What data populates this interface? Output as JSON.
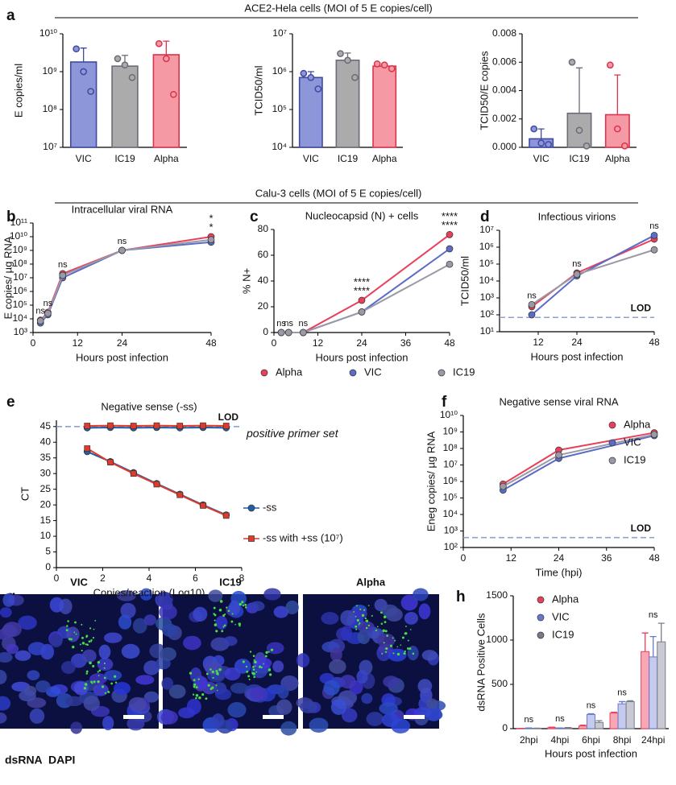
{
  "figure": {
    "headers": [
      "ACE2-Hela cells (MOI of 5 E copies/cell)",
      "Calu-3 cells (MOI of 5 E copies/cell)"
    ],
    "panel_labels": [
      "a",
      "b",
      "c",
      "d",
      "e",
      "f",
      "g",
      "h"
    ]
  },
  "images": {
    "titles": [
      "VIC",
      "IC19",
      "Alpha"
    ],
    "channels": [
      {
        "name": "dsRNA",
        "color": "#3cc83c"
      },
      {
        "name": "DAPI",
        "color": "#3a4fc4"
      }
    ]
  },
  "chart_data": [
    {
      "type": "bar",
      "ylabel": "E copies/ml",
      "categories": [
        "VIC",
        "IC19",
        "Alpha"
      ],
      "values": [
        1800000000,
        1400000000,
        2800000000
      ],
      "errors": [
        2400000000,
        1300000000,
        3600000000
      ],
      "points": [
        [
          4000000000,
          1000000000,
          300000000
        ],
        [
          2200000000,
          1500000000,
          700000000
        ],
        [
          5500000000,
          2200000000,
          250000000
        ]
      ],
      "colors": [
        "#8d96d8",
        "#ababab",
        "#f59aa5"
      ],
      "edge_colors": [
        "#3f4aa0",
        "#6b6b78",
        "#d9344c"
      ],
      "ylog": true,
      "ylim": [
        10000000,
        10000000000
      ],
      "yticks": [
        {
          "value": 10000000,
          "label": "10⁷"
        },
        {
          "value": 100000000,
          "label": "10⁸"
        },
        {
          "value": 1000000000,
          "label": "10⁹"
        },
        {
          "value": 10000000000,
          "label": "10¹⁰"
        }
      ]
    },
    {
      "type": "bar",
      "ylabel": "TCID50/ml",
      "categories": [
        "VIC",
        "IC19",
        "Alpha"
      ],
      "values": [
        700000,
        2000000,
        1400000
      ],
      "errors": [
        300000,
        1100000,
        200000
      ],
      "points": [
        [
          900000,
          700000,
          350000
        ],
        [
          3000000,
          2000000,
          700000
        ],
        [
          1600000,
          1500000,
          1200000
        ]
      ],
      "colors": [
        "#8d96d8",
        "#ababab",
        "#f59aa5"
      ],
      "edge_colors": [
        "#3f4aa0",
        "#6b6b78",
        "#d9344c"
      ],
      "ylog": true,
      "ylim": [
        10000,
        10000000
      ],
      "yticks": [
        {
          "value": 10000,
          "label": "10⁴"
        },
        {
          "value": 100000,
          "label": "10⁵"
        },
        {
          "value": 1000000,
          "label": "10⁶"
        },
        {
          "value": 10000000,
          "label": "10⁷"
        }
      ]
    },
    {
      "type": "bar",
      "ylabel": "TCID50/E copies",
      "categories": [
        "VIC",
        "IC19",
        "Alpha"
      ],
      "values": [
        0.0006,
        0.0024,
        0.0023
      ],
      "errors": [
        0.0007,
        0.0032,
        0.0028
      ],
      "points": [
        [
          0.0013,
          0.0003,
          0.0002
        ],
        [
          0.006,
          0.0012,
          0.0001
        ],
        [
          0.0058,
          0.0013,
          0.0001
        ]
      ],
      "colors": [
        "#8d96d8",
        "#ababab",
        "#f59aa5"
      ],
      "edge_colors": [
        "#3f4aa0",
        "#6b6b78",
        "#d9344c"
      ],
      "ylog": false,
      "ylim": [
        0,
        0.008
      ],
      "yticks": [
        {
          "value": 0,
          "label": "0.000"
        },
        {
          "value": 0.002,
          "label": "0.002"
        },
        {
          "value": 0.004,
          "label": "0.004"
        },
        {
          "value": 0.006,
          "label": "0.006"
        },
        {
          "value": 0.008,
          "label": "0.008"
        }
      ]
    },
    {
      "type": "line",
      "title": "Intracellular viral RNA",
      "xlabel": "Hours post infection",
      "ylabel": "E copies/ µg RNA",
      "x": [
        2,
        4,
        8,
        24,
        48
      ],
      "xlim": [
        0,
        48
      ],
      "xticks": [
        0,
        12,
        24,
        48
      ],
      "ylog": true,
      "ylim": [
        1000,
        100000000000
      ],
      "yticks": [
        {
          "value": 1000,
          "label": "10³"
        },
        {
          "value": 10000,
          "label": "10⁴"
        },
        {
          "value": 100000,
          "label": "10⁵"
        },
        {
          "value": 1000000,
          "label": "10⁶"
        },
        {
          "value": 10000000,
          "label": "10⁷"
        },
        {
          "value": 100000000,
          "label": "10⁸"
        },
        {
          "value": 1000000000,
          "label": "10⁹"
        },
        {
          "value": 10000000000,
          "label": "10¹⁰"
        },
        {
          "value": 100000000000,
          "label": "10¹¹"
        }
      ],
      "series": [
        {
          "name": "Alpha",
          "color": "#e8405a",
          "values": [
            8000,
            30000,
            20000000,
            1000000000,
            10000000000
          ]
        },
        {
          "name": "VIC",
          "color": "#5b6bc8",
          "values": [
            5000,
            20000,
            10000000,
            1000000000,
            4000000000
          ]
        },
        {
          "name": "IC19",
          "color": "#9a9aa6",
          "values": [
            7000,
            25000,
            15000000,
            1000000000,
            6000000000
          ]
        }
      ],
      "annotations": [
        [
          {
            "text": "ns"
          }
        ],
        [
          {
            "text": "ns"
          }
        ],
        [
          {
            "text": "ns"
          }
        ],
        [
          {
            "text": "ns"
          }
        ],
        [
          {
            "text": "*",
            "color": "#55556a"
          },
          {
            "text": "*",
            "color": "#5b6bc8"
          }
        ]
      ]
    },
    {
      "type": "line",
      "title": "Nucleocapsid (N) + cells",
      "xlabel": "Hours post infection",
      "ylabel": "% N+",
      "x": [
        2,
        4,
        8,
        24,
        48
      ],
      "xlim": [
        0,
        48
      ],
      "xticks": [
        0,
        12,
        24,
        36,
        48
      ],
      "ylog": false,
      "ylim": [
        0,
        80
      ],
      "yticks": [
        0,
        20,
        40,
        60,
        80
      ],
      "legend": "bottom",
      "series": [
        {
          "name": "Alpha",
          "color": "#e8405a",
          "values": [
            0,
            0,
            0,
            25,
            76
          ]
        },
        {
          "name": "VIC",
          "color": "#5b6bc8",
          "values": [
            0,
            0,
            0,
            16,
            65
          ]
        },
        {
          "name": "IC19",
          "color": "#9a9aa6",
          "values": [
            0,
            0,
            0,
            16,
            53
          ]
        }
      ],
      "annotations": [
        [
          {
            "text": "ns"
          }
        ],
        [
          {
            "text": "ns"
          }
        ],
        [
          {
            "text": "ns"
          }
        ],
        [
          {
            "text": "****",
            "color": "#55556a"
          },
          {
            "text": "****",
            "color": "#5b6bc8"
          }
        ],
        [
          {
            "text": "****",
            "color": "#55556a"
          },
          {
            "text": "****",
            "color": "#5b6bc8"
          }
        ]
      ]
    },
    {
      "type": "line",
      "title": "Infectious virions",
      "xlabel": "Hours post infection",
      "ylabel": "TCID50/ml",
      "x": [
        10,
        24,
        48
      ],
      "xlim": [
        0,
        48
      ],
      "xticks": [
        12,
        24,
        48
      ],
      "ylog": true,
      "ylim": [
        10,
        10000000
      ],
      "yticks": [
        {
          "value": 10,
          "label": "10¹"
        },
        {
          "value": 100,
          "label": "10²"
        },
        {
          "value": 1000,
          "label": "10³"
        },
        {
          "value": 10000,
          "label": "10⁴"
        },
        {
          "value": 100000,
          "label": "10⁵"
        },
        {
          "value": 1000000,
          "label": "10⁶"
        },
        {
          "value": 10000000,
          "label": "10⁷"
        }
      ],
      "lod": {
        "value": 70,
        "label": "LOD"
      },
      "series": [
        {
          "name": "Alpha",
          "color": "#e8405a",
          "values": [
            300,
            30000,
            3000000
          ]
        },
        {
          "name": "VIC",
          "color": "#5b6bc8",
          "values": [
            100,
            20000,
            5000000
          ]
        },
        {
          "name": "IC19",
          "color": "#9a9aa6",
          "values": [
            400,
            25000,
            700000
          ]
        }
      ],
      "annotations": [
        [
          {
            "text": "ns"
          }
        ],
        [
          {
            "text": "ns"
          }
        ],
        [
          {
            "text": "ns"
          }
        ]
      ]
    },
    {
      "type": "line",
      "title": "Negative sense (-ss)",
      "xlabel": "Copies/reaction (Log10)",
      "ylabel": "CT",
      "x": [
        1.33,
        2.33,
        3.33,
        4.33,
        5.33,
        6.33,
        7.33
      ],
      "xlim": [
        0,
        8
      ],
      "xticks": [
        0,
        2,
        4,
        6,
        8
      ],
      "ylog": false,
      "ylim": [
        0,
        47
      ],
      "yticks": [
        0,
        5,
        10,
        15,
        20,
        25,
        30,
        35,
        40,
        45
      ],
      "legend": "right",
      "lod": {
        "value": 45,
        "label": "LOD"
      },
      "series": [
        {
          "name": "-ss",
          "color": "#1f5fa8",
          "marker": "circle",
          "values": [
            37,
            33.8,
            30.3,
            26.8,
            23.4,
            20,
            16.8
          ]
        },
        {
          "name": "-ss with +ss (10⁷)",
          "color": "#e03a2b",
          "marker": "square",
          "values": [
            38,
            33.6,
            30,
            26.6,
            23.2,
            19.8,
            16.6
          ]
        }
      ],
      "upper_label": "positive primer set",
      "upper_series": [
        {
          "color": "#1f5fa8",
          "marker": "circle",
          "values": [
            44.6,
            44.7,
            44.6,
            44.7,
            44.6,
            44.7,
            44.6
          ]
        },
        {
          "color": "#e03a2b",
          "marker": "square",
          "values": [
            45.2,
            45.3,
            45.2,
            45.3,
            45.2,
            45.3,
            45.2
          ]
        }
      ]
    },
    {
      "type": "line",
      "title": "Negative sense viral RNA",
      "xlabel": "Time (hpi)",
      "ylabel": "Eneg copies/ µg RNA",
      "x": [
        10,
        24,
        48
      ],
      "xlim": [
        0,
        48
      ],
      "xticks": [
        0,
        12,
        24,
        36,
        48
      ],
      "ylog": true,
      "ylim": [
        100,
        10000000000
      ],
      "yticks": [
        {
          "value": 100,
          "label": "10²"
        },
        {
          "value": 1000,
          "label": "10³"
        },
        {
          "value": 10000,
          "label": "10⁴"
        },
        {
          "value": 100000,
          "label": "10⁵"
        },
        {
          "value": 1000000,
          "label": "10⁶"
        },
        {
          "value": 10000000,
          "label": "10⁷"
        },
        {
          "value": 100000000,
          "label": "10⁸"
        },
        {
          "value": 1000000000,
          "label": "10⁹"
        },
        {
          "value": 10000000000,
          "label": "10¹⁰"
        }
      ],
      "lod": {
        "value": 400,
        "label": "LOD"
      },
      "legend": "upper-right",
      "series": [
        {
          "name": "Alpha",
          "color": "#e8405a",
          "values": [
            700000,
            80000000,
            900000000
          ]
        },
        {
          "name": "VIC",
          "color": "#5b6bc8",
          "values": [
            300000,
            25000000,
            600000000
          ]
        },
        {
          "name": "IC19",
          "color": "#9a9aa6",
          "values": [
            500000,
            40000000,
            700000000
          ]
        }
      ]
    },
    {
      "type": "bar",
      "xlabel": "Hours post infection",
      "ylabel": "dsRNA Positive Cells",
      "categories": [
        "2hpi",
        "4hpi",
        "6hpi",
        "8hpi",
        "24hpi"
      ],
      "ylog": false,
      "ylim": [
        0,
        1500
      ],
      "yticks": [
        0,
        500,
        1000,
        1500
      ],
      "legend": "upper-left",
      "series": [
        {
          "name": "Alpha",
          "color": "#e8405a",
          "fill": "#f7a8b4",
          "values": [
            2,
            12,
            30,
            175,
            870
          ],
          "errors": [
            1,
            5,
            10,
            10,
            210
          ]
        },
        {
          "name": "VIC",
          "color": "#6a78cc",
          "fill": "#c5cbef",
          "values": [
            5,
            5,
            160,
            280,
            810
          ],
          "errors": [
            3,
            3,
            8,
            25,
            230
          ]
        },
        {
          "name": "IC19",
          "color": "#7a7a8a",
          "fill": "#c9c9d3",
          "values": [
            3,
            8,
            70,
            305,
            980
          ],
          "errors": [
            2,
            4,
            20,
            10,
            210
          ]
        }
      ],
      "annotations": [
        "ns",
        "ns",
        "ns",
        "ns",
        "ns"
      ]
    }
  ]
}
